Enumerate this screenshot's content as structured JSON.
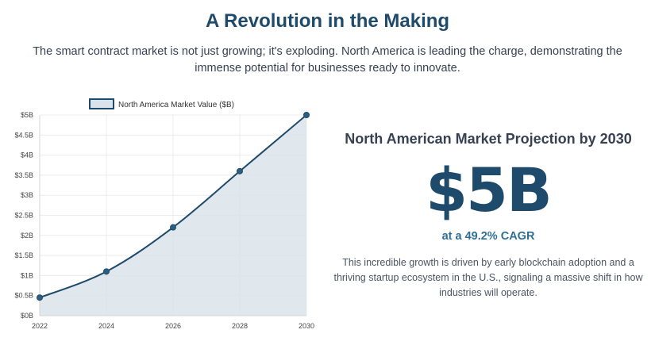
{
  "header": {
    "title": "A Revolution in the Making",
    "subtitle": "The smart contract market is not just growing; it's exploding. North America is leading the charge, demonstrating the immense potential for businesses ready to innovate."
  },
  "panel": {
    "heading": "North American Market Projection by 2030",
    "big_number": "$5B",
    "cagr": "at a 49.2% CAGR",
    "description": "This incredible growth is driven by early blockchain adoption and a thriving startup ecosystem in the U.S., signaling a massive shift in how industries will operate."
  },
  "chart_data": {
    "type": "line",
    "x": [
      2022,
      2024,
      2026,
      2028,
      2030
    ],
    "series": [
      {
        "name": "North America Market Value ($B)",
        "values": [
          0.45,
          1.1,
          2.2,
          3.6,
          5.0
        ],
        "color": "#1e4a6b",
        "fill": "#dbe3ea"
      }
    ],
    "xlabel": "",
    "ylabel": "",
    "ylim": [
      0,
      5
    ],
    "xlim": [
      2022,
      2030
    ],
    "y_ticks": [
      "$0B",
      "$0.5B",
      "$1B",
      "$1.5B",
      "$2B",
      "$2.5B",
      "$3B",
      "$3.5B",
      "$4B",
      "$4.5B",
      "$5B"
    ],
    "x_ticks": [
      "2022",
      "2024",
      "2026",
      "2028",
      "2030"
    ],
    "grid": true,
    "legend_position": "top"
  }
}
